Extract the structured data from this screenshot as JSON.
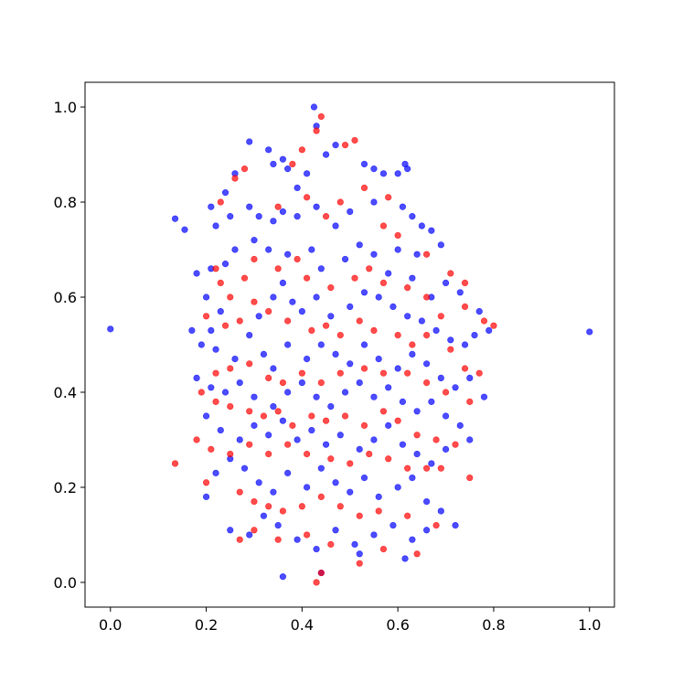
{
  "chart_data": {
    "type": "scatter",
    "xlim": [
      -0.053,
      1.052
    ],
    "ylim": [
      -0.052,
      1.052
    ],
    "xticks": [
      {
        "value": 0,
        "label": "0.0"
      },
      0.2,
      0.4,
      0.6,
      0.8,
      {
        "value": 1,
        "label": "1.0"
      }
    ],
    "yticks": [
      {
        "value": 0,
        "label": "0.0"
      },
      0.2,
      0.4,
      0.6,
      0.8,
      {
        "value": 1,
        "label": "1.0"
      }
    ],
    "grid": false,
    "series": [
      {
        "color": "#0000ff",
        "x": [
          0.0,
          1.0,
          0.135,
          0.155,
          0.36,
          0.425,
          0.43,
          0.29,
          0.33,
          0.34,
          0.36,
          0.37,
          0.39,
          0.41,
          0.45,
          0.47,
          0.53,
          0.55,
          0.57,
          0.6,
          0.615,
          0.62,
          0.26,
          0.24,
          0.21,
          0.22,
          0.25,
          0.29,
          0.31,
          0.34,
          0.36,
          0.39,
          0.43,
          0.47,
          0.5,
          0.55,
          0.61,
          0.63,
          0.65,
          0.67,
          0.69,
          0.64,
          0.6,
          0.55,
          0.52,
          0.49,
          0.44,
          0.42,
          0.37,
          0.33,
          0.3,
          0.26,
          0.24,
          0.21,
          0.18,
          0.2,
          0.23,
          0.21,
          0.17,
          0.19,
          0.22,
          0.26,
          0.29,
          0.31,
          0.34,
          0.36,
          0.38,
          0.4,
          0.43,
          0.46,
          0.5,
          0.53,
          0.56,
          0.59,
          0.62,
          0.65,
          0.68,
          0.71,
          0.74,
          0.76,
          0.79,
          0.77,
          0.73,
          0.7,
          0.67,
          0.63,
          0.58,
          0.32,
          0.34,
          0.37,
          0.41,
          0.44,
          0.47,
          0.5,
          0.53,
          0.56,
          0.6,
          0.63,
          0.66,
          0.69,
          0.72,
          0.75,
          0.78,
          0.18,
          0.21,
          0.24,
          0.27,
          0.3,
          0.34,
          0.37,
          0.4,
          0.43,
          0.46,
          0.49,
          0.52,
          0.55,
          0.58,
          0.61,
          0.64,
          0.67,
          0.7,
          0.73,
          0.75,
          0.2,
          0.23,
          0.27,
          0.3,
          0.33,
          0.36,
          0.39,
          0.42,
          0.45,
          0.48,
          0.52,
          0.55,
          0.58,
          0.61,
          0.64,
          0.67,
          0.7,
          0.22,
          0.25,
          0.28,
          0.31,
          0.34,
          0.37,
          0.41,
          0.44,
          0.47,
          0.5,
          0.53,
          0.56,
          0.6,
          0.63,
          0.66,
          0.69,
          0.72,
          0.2,
          0.25,
          0.29,
          0.32,
          0.35,
          0.39,
          0.43,
          0.47,
          0.51,
          0.55,
          0.59,
          0.63,
          0.66,
          0.44,
          0.52,
          0.615
        ],
        "y": [
          0.533,
          0.527,
          0.765,
          0.742,
          0.012,
          1.0,
          0.96,
          0.927,
          0.91,
          0.88,
          0.89,
          0.87,
          0.83,
          0.86,
          0.9,
          0.92,
          0.88,
          0.87,
          0.86,
          0.86,
          0.88,
          0.87,
          0.86,
          0.82,
          0.79,
          0.75,
          0.77,
          0.79,
          0.77,
          0.76,
          0.78,
          0.77,
          0.79,
          0.75,
          0.78,
          0.8,
          0.79,
          0.77,
          0.75,
          0.74,
          0.71,
          0.69,
          0.7,
          0.69,
          0.71,
          0.68,
          0.66,
          0.7,
          0.69,
          0.7,
          0.72,
          0.7,
          0.67,
          0.66,
          0.65,
          0.6,
          0.57,
          0.53,
          0.53,
          0.5,
          0.49,
          0.47,
          0.52,
          0.56,
          0.6,
          0.63,
          0.59,
          0.57,
          0.6,
          0.56,
          0.58,
          0.61,
          0.6,
          0.58,
          0.56,
          0.55,
          0.53,
          0.51,
          0.5,
          0.52,
          0.53,
          0.57,
          0.61,
          0.63,
          0.6,
          0.64,
          0.65,
          0.48,
          0.45,
          0.5,
          0.47,
          0.5,
          0.48,
          0.46,
          0.5,
          0.47,
          0.45,
          0.48,
          0.46,
          0.43,
          0.41,
          0.43,
          0.39,
          0.43,
          0.41,
          0.4,
          0.42,
          0.39,
          0.37,
          0.4,
          0.42,
          0.39,
          0.37,
          0.4,
          0.42,
          0.39,
          0.41,
          0.38,
          0.36,
          0.38,
          0.35,
          0.33,
          0.3,
          0.35,
          0.32,
          0.3,
          0.33,
          0.31,
          0.34,
          0.3,
          0.32,
          0.29,
          0.31,
          0.28,
          0.3,
          0.33,
          0.29,
          0.27,
          0.25,
          0.28,
          0.23,
          0.26,
          0.24,
          0.21,
          0.19,
          0.23,
          0.2,
          0.24,
          0.21,
          0.19,
          0.22,
          0.18,
          0.2,
          0.22,
          0.17,
          0.15,
          0.12,
          0.18,
          0.11,
          0.1,
          0.14,
          0.12,
          0.09,
          0.07,
          0.11,
          0.08,
          0.1,
          0.12,
          0.09,
          0.11,
          0.02,
          0.06,
          0.05
        ]
      },
      {
        "color": "#ff0000",
        "x": [
          0.135,
          0.43,
          0.44,
          0.43,
          0.44,
          0.51,
          0.49,
          0.4,
          0.38,
          0.28,
          0.26,
          0.23,
          0.35,
          0.41,
          0.45,
          0.48,
          0.53,
          0.57,
          0.58,
          0.6,
          0.66,
          0.71,
          0.74,
          0.78,
          0.8,
          0.74,
          0.69,
          0.66,
          0.62,
          0.57,
          0.54,
          0.51,
          0.46,
          0.41,
          0.39,
          0.35,
          0.3,
          0.28,
          0.25,
          0.23,
          0.22,
          0.2,
          0.24,
          0.27,
          0.3,
          0.33,
          0.37,
          0.42,
          0.45,
          0.48,
          0.52,
          0.55,
          0.6,
          0.63,
          0.66,
          0.71,
          0.74,
          0.7,
          0.75,
          0.77,
          0.66,
          0.62,
          0.57,
          0.53,
          0.48,
          0.44,
          0.4,
          0.36,
          0.33,
          0.29,
          0.25,
          0.22,
          0.19,
          0.22,
          0.25,
          0.29,
          0.32,
          0.35,
          0.38,
          0.42,
          0.45,
          0.49,
          0.53,
          0.57,
          0.6,
          0.64,
          0.68,
          0.72,
          0.18,
          0.21,
          0.25,
          0.29,
          0.33,
          0.37,
          0.41,
          0.46,
          0.5,
          0.54,
          0.58,
          0.62,
          0.66,
          0.69,
          0.75,
          0.2,
          0.27,
          0.3,
          0.33,
          0.36,
          0.4,
          0.44,
          0.48,
          0.52,
          0.56,
          0.62,
          0.68,
          0.27,
          0.3,
          0.35,
          0.41,
          0.46,
          0.52,
          0.57,
          0.64
        ],
        "y": [
          0.25,
          0.0,
          0.02,
          0.95,
          0.98,
          0.93,
          0.92,
          0.91,
          0.88,
          0.87,
          0.85,
          0.8,
          0.79,
          0.81,
          0.77,
          0.8,
          0.83,
          0.75,
          0.81,
          0.73,
          0.69,
          0.65,
          0.63,
          0.55,
          0.54,
          0.58,
          0.56,
          0.6,
          0.62,
          0.63,
          0.66,
          0.64,
          0.62,
          0.64,
          0.68,
          0.66,
          0.68,
          0.64,
          0.6,
          0.63,
          0.66,
          0.56,
          0.54,
          0.55,
          0.59,
          0.57,
          0.55,
          0.53,
          0.54,
          0.52,
          0.55,
          0.53,
          0.52,
          0.5,
          0.52,
          0.49,
          0.45,
          0.4,
          0.38,
          0.44,
          0.42,
          0.44,
          0.44,
          0.45,
          0.44,
          0.42,
          0.44,
          0.42,
          0.43,
          0.46,
          0.45,
          0.44,
          0.4,
          0.38,
          0.37,
          0.36,
          0.35,
          0.36,
          0.33,
          0.35,
          0.34,
          0.35,
          0.33,
          0.36,
          0.34,
          0.31,
          0.3,
          0.29,
          0.3,
          0.28,
          0.27,
          0.29,
          0.27,
          0.29,
          0.27,
          0.26,
          0.25,
          0.27,
          0.26,
          0.24,
          0.24,
          0.24,
          0.22,
          0.21,
          0.19,
          0.17,
          0.16,
          0.15,
          0.16,
          0.18,
          0.16,
          0.14,
          0.15,
          0.14,
          0.12,
          0.09,
          0.11,
          0.09,
          0.1,
          0.08,
          0.04,
          0.07,
          0.06
        ]
      }
    ]
  }
}
